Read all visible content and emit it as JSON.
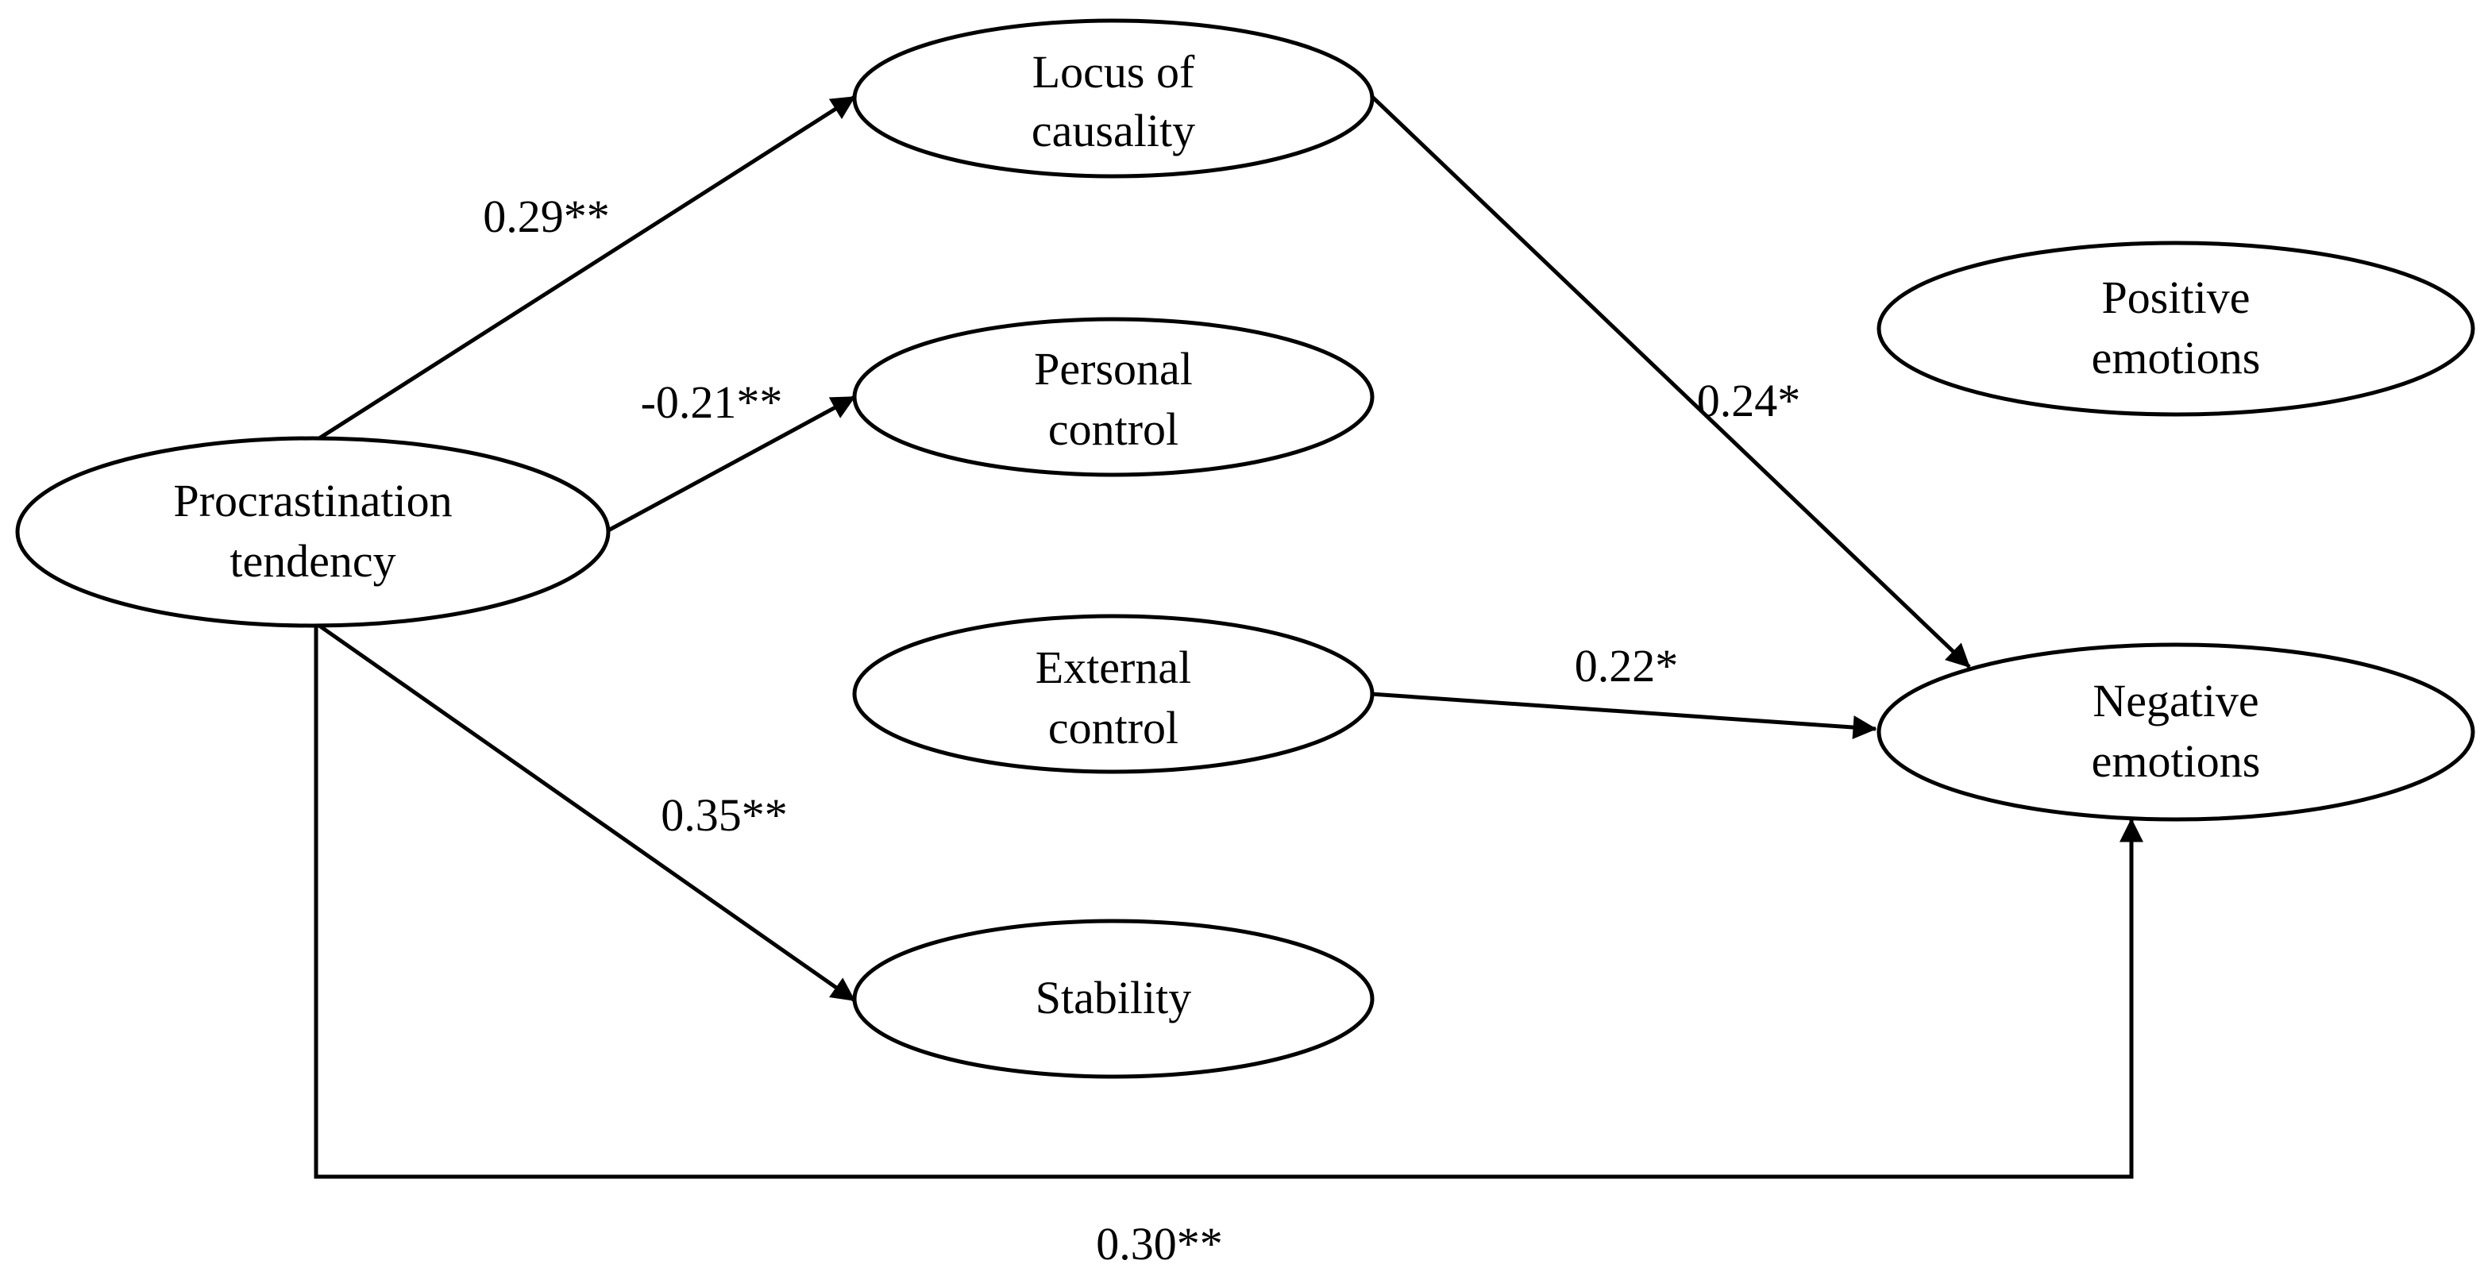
{
  "nodes": {
    "procrastination": {
      "line1": "Procrastination",
      "line2": "tendency"
    },
    "locus": {
      "line1": "Locus of",
      "line2": "causality"
    },
    "personal": {
      "line1": "Personal",
      "line2": "control"
    },
    "external": {
      "line1": "External",
      "line2": "control"
    },
    "stability": {
      "line1": "Stability"
    },
    "positive": {
      "line1": "Positive",
      "line2": "emotions"
    },
    "negative": {
      "line1": "Negative",
      "line2": "emotions"
    }
  },
  "edges": {
    "proc_to_locus": "0.29**",
    "proc_to_personal": "-0.21**",
    "proc_to_stability": "0.35**",
    "locus_to_negative": "0.24*",
    "external_to_negative": "0.22*",
    "proc_to_negative": "0.30**"
  }
}
